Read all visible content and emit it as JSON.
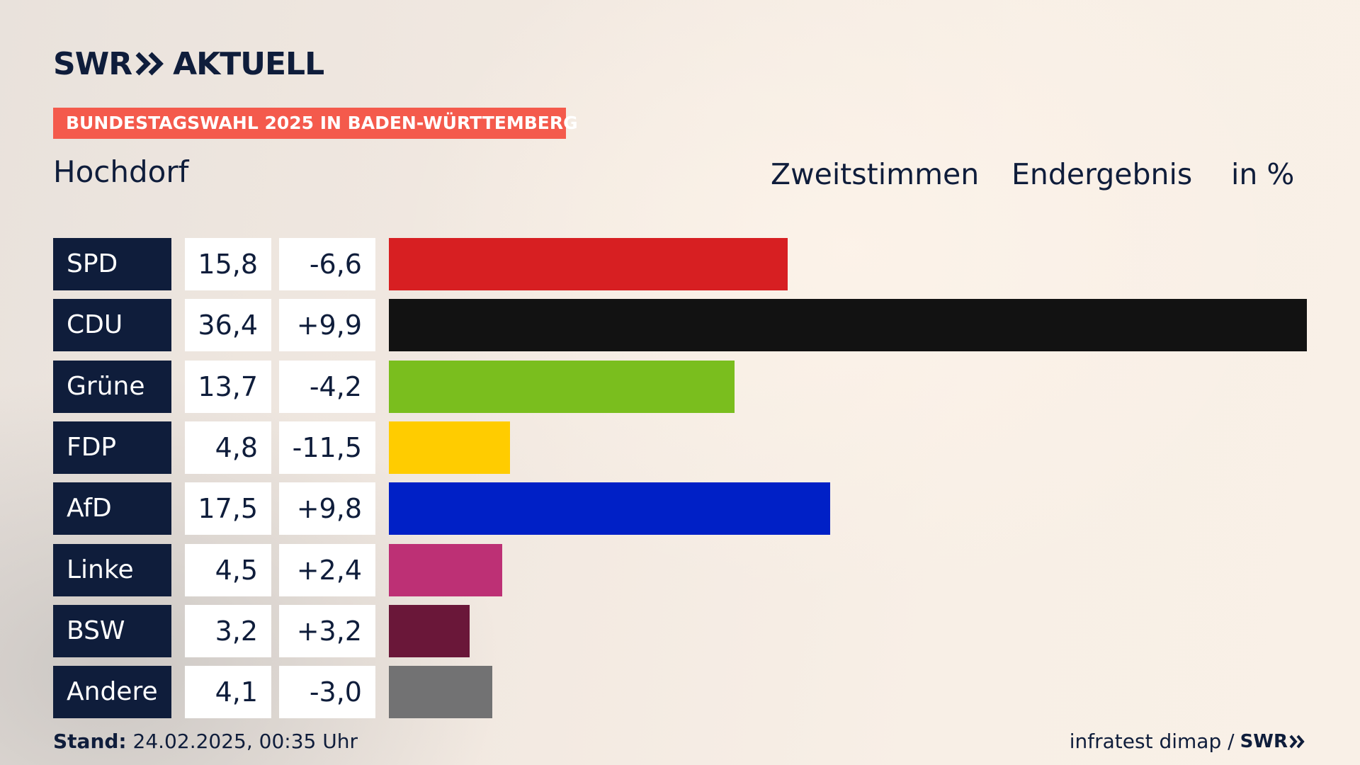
{
  "brand": {
    "left": "SWR",
    "right": "AKTUELL"
  },
  "banner": "BUNDESTAGSWAHL 2025 IN BADEN-WÜRTTEMBERG",
  "place": "Hochdorf",
  "headers": {
    "vote_type": "Zweitstimmen",
    "status": "Endergebnis",
    "unit": "in %"
  },
  "chart_data": {
    "type": "bar",
    "orientation": "horizontal",
    "unit": "%",
    "categories": [
      "SPD",
      "CDU",
      "Grüne",
      "FDP",
      "AfD",
      "Linke",
      "BSW",
      "Andere"
    ],
    "values": [
      15.8,
      36.4,
      13.7,
      4.8,
      17.5,
      4.5,
      3.2,
      4.1
    ],
    "value_labels": [
      "15,8",
      "36,4",
      "13,7",
      "4,8",
      "17,5",
      "4,5",
      "3,2",
      "4,1"
    ],
    "change_labels": [
      "-6,6",
      "+9,9",
      "-4,2",
      "-11,5",
      "+9,8",
      "+2,4",
      "+3,2",
      "-3,0"
    ],
    "changes": [
      -6.6,
      9.9,
      -4.2,
      -11.5,
      9.8,
      2.4,
      3.2,
      -3.0
    ],
    "colors": [
      "#d71f22",
      "#121212",
      "#7abe1e",
      "#ffcc00",
      "#0020c6",
      "#bd3075",
      "#6a1739",
      "#727273"
    ],
    "xlim": [
      0,
      36.4
    ]
  },
  "footer": {
    "stand_label": "Stand:",
    "stand_value": "24.02.2025, 00:35 Uhr",
    "source": "infratest dimap /",
    "source_brand": "SWR"
  }
}
